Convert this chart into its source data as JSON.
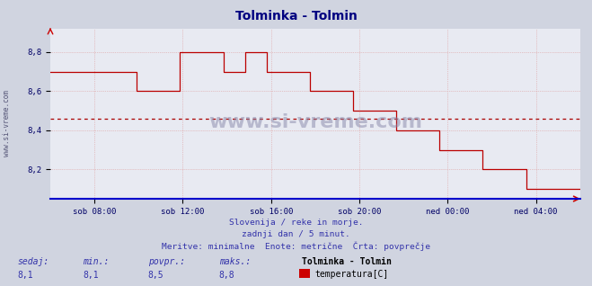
{
  "title": "Tolminka - Tolmin",
  "title_color": "#000080",
  "bg_color": "#d0d4e0",
  "plot_bg_color": "#e8eaf2",
  "grid_color": "#dd9999",
  "line_color": "#bb0000",
  "avg_line_color": "#aa0000",
  "avg_value": 8.46,
  "ylim": [
    8.05,
    8.92
  ],
  "yticks": [
    8.2,
    8.4,
    8.6,
    8.8
  ],
  "ytick_labels": [
    "8,2",
    "8,4",
    "8,6",
    "8,8"
  ],
  "ylabel_color": "#000066",
  "x_tick_positions": [
    2,
    6,
    10,
    14,
    18,
    22
  ],
  "x_labels": [
    "sob 08:00",
    "sob 12:00",
    "sob 16:00",
    "sob 20:00",
    "ned 00:00",
    "ned 04:00"
  ],
  "x_label_color": "#000066",
  "xlim": [
    0,
    24
  ],
  "watermark": "www.si-vreme.com",
  "watermark_vertical": "www.si-vreme.com",
  "subtitle1": "Slovenija / reke in morje.",
  "subtitle2": "zadnji dan / 5 minut.",
  "subtitle3": "Meritve: minimalne  Enote: metrične  Črta: povprečje",
  "footer_color": "#3333aa",
  "stat_labels": [
    "sedaj:",
    "min.:",
    "povpr.:",
    "maks.:"
  ],
  "stat_values": [
    "8,1",
    "8,1",
    "8,5",
    "8,8"
  ],
  "legend_title": "Tolminka - Tolmin",
  "legend_label": "temperatura[C]",
  "legend_color": "#cc0000",
  "data_y": [
    8.7,
    8.7,
    8.7,
    8.7,
    8.7,
    8.7,
    8.7,
    8.7,
    8.7,
    8.7,
    8.7,
    8.7,
    8.7,
    8.7,
    8.7,
    8.7,
    8.7,
    8.7,
    8.7,
    8.7,
    8.7,
    8.7,
    8.7,
    8.7,
    8.6,
    8.6,
    8.6,
    8.6,
    8.6,
    8.6,
    8.6,
    8.6,
    8.6,
    8.6,
    8.6,
    8.6,
    8.8,
    8.8,
    8.8,
    8.8,
    8.8,
    8.8,
    8.8,
    8.8,
    8.8,
    8.8,
    8.8,
    8.8,
    8.7,
    8.7,
    8.7,
    8.7,
    8.7,
    8.7,
    8.8,
    8.8,
    8.8,
    8.8,
    8.8,
    8.8,
    8.7,
    8.7,
    8.7,
    8.7,
    8.7,
    8.7,
    8.7,
    8.7,
    8.7,
    8.7,
    8.7,
    8.7,
    8.6,
    8.6,
    8.6,
    8.6,
    8.6,
    8.6,
    8.6,
    8.6,
    8.6,
    8.6,
    8.6,
    8.6,
    8.5,
    8.5,
    8.5,
    8.5,
    8.5,
    8.5,
    8.5,
    8.5,
    8.5,
    8.5,
    8.5,
    8.5,
    8.4,
    8.4,
    8.4,
    8.4,
    8.4,
    8.4,
    8.4,
    8.4,
    8.4,
    8.4,
    8.4,
    8.4,
    8.3,
    8.3,
    8.3,
    8.3,
    8.3,
    8.3,
    8.3,
    8.3,
    8.3,
    8.3,
    8.3,
    8.3,
    8.2,
    8.2,
    8.2,
    8.2,
    8.2,
    8.2,
    8.2,
    8.2,
    8.2,
    8.2,
    8.2,
    8.2,
    8.1,
    8.1,
    8.1,
    8.1,
    8.1,
    8.1,
    8.1,
    8.1,
    8.1,
    8.1,
    8.1,
    8.1,
    8.1,
    8.1,
    8.1,
    8.1
  ]
}
